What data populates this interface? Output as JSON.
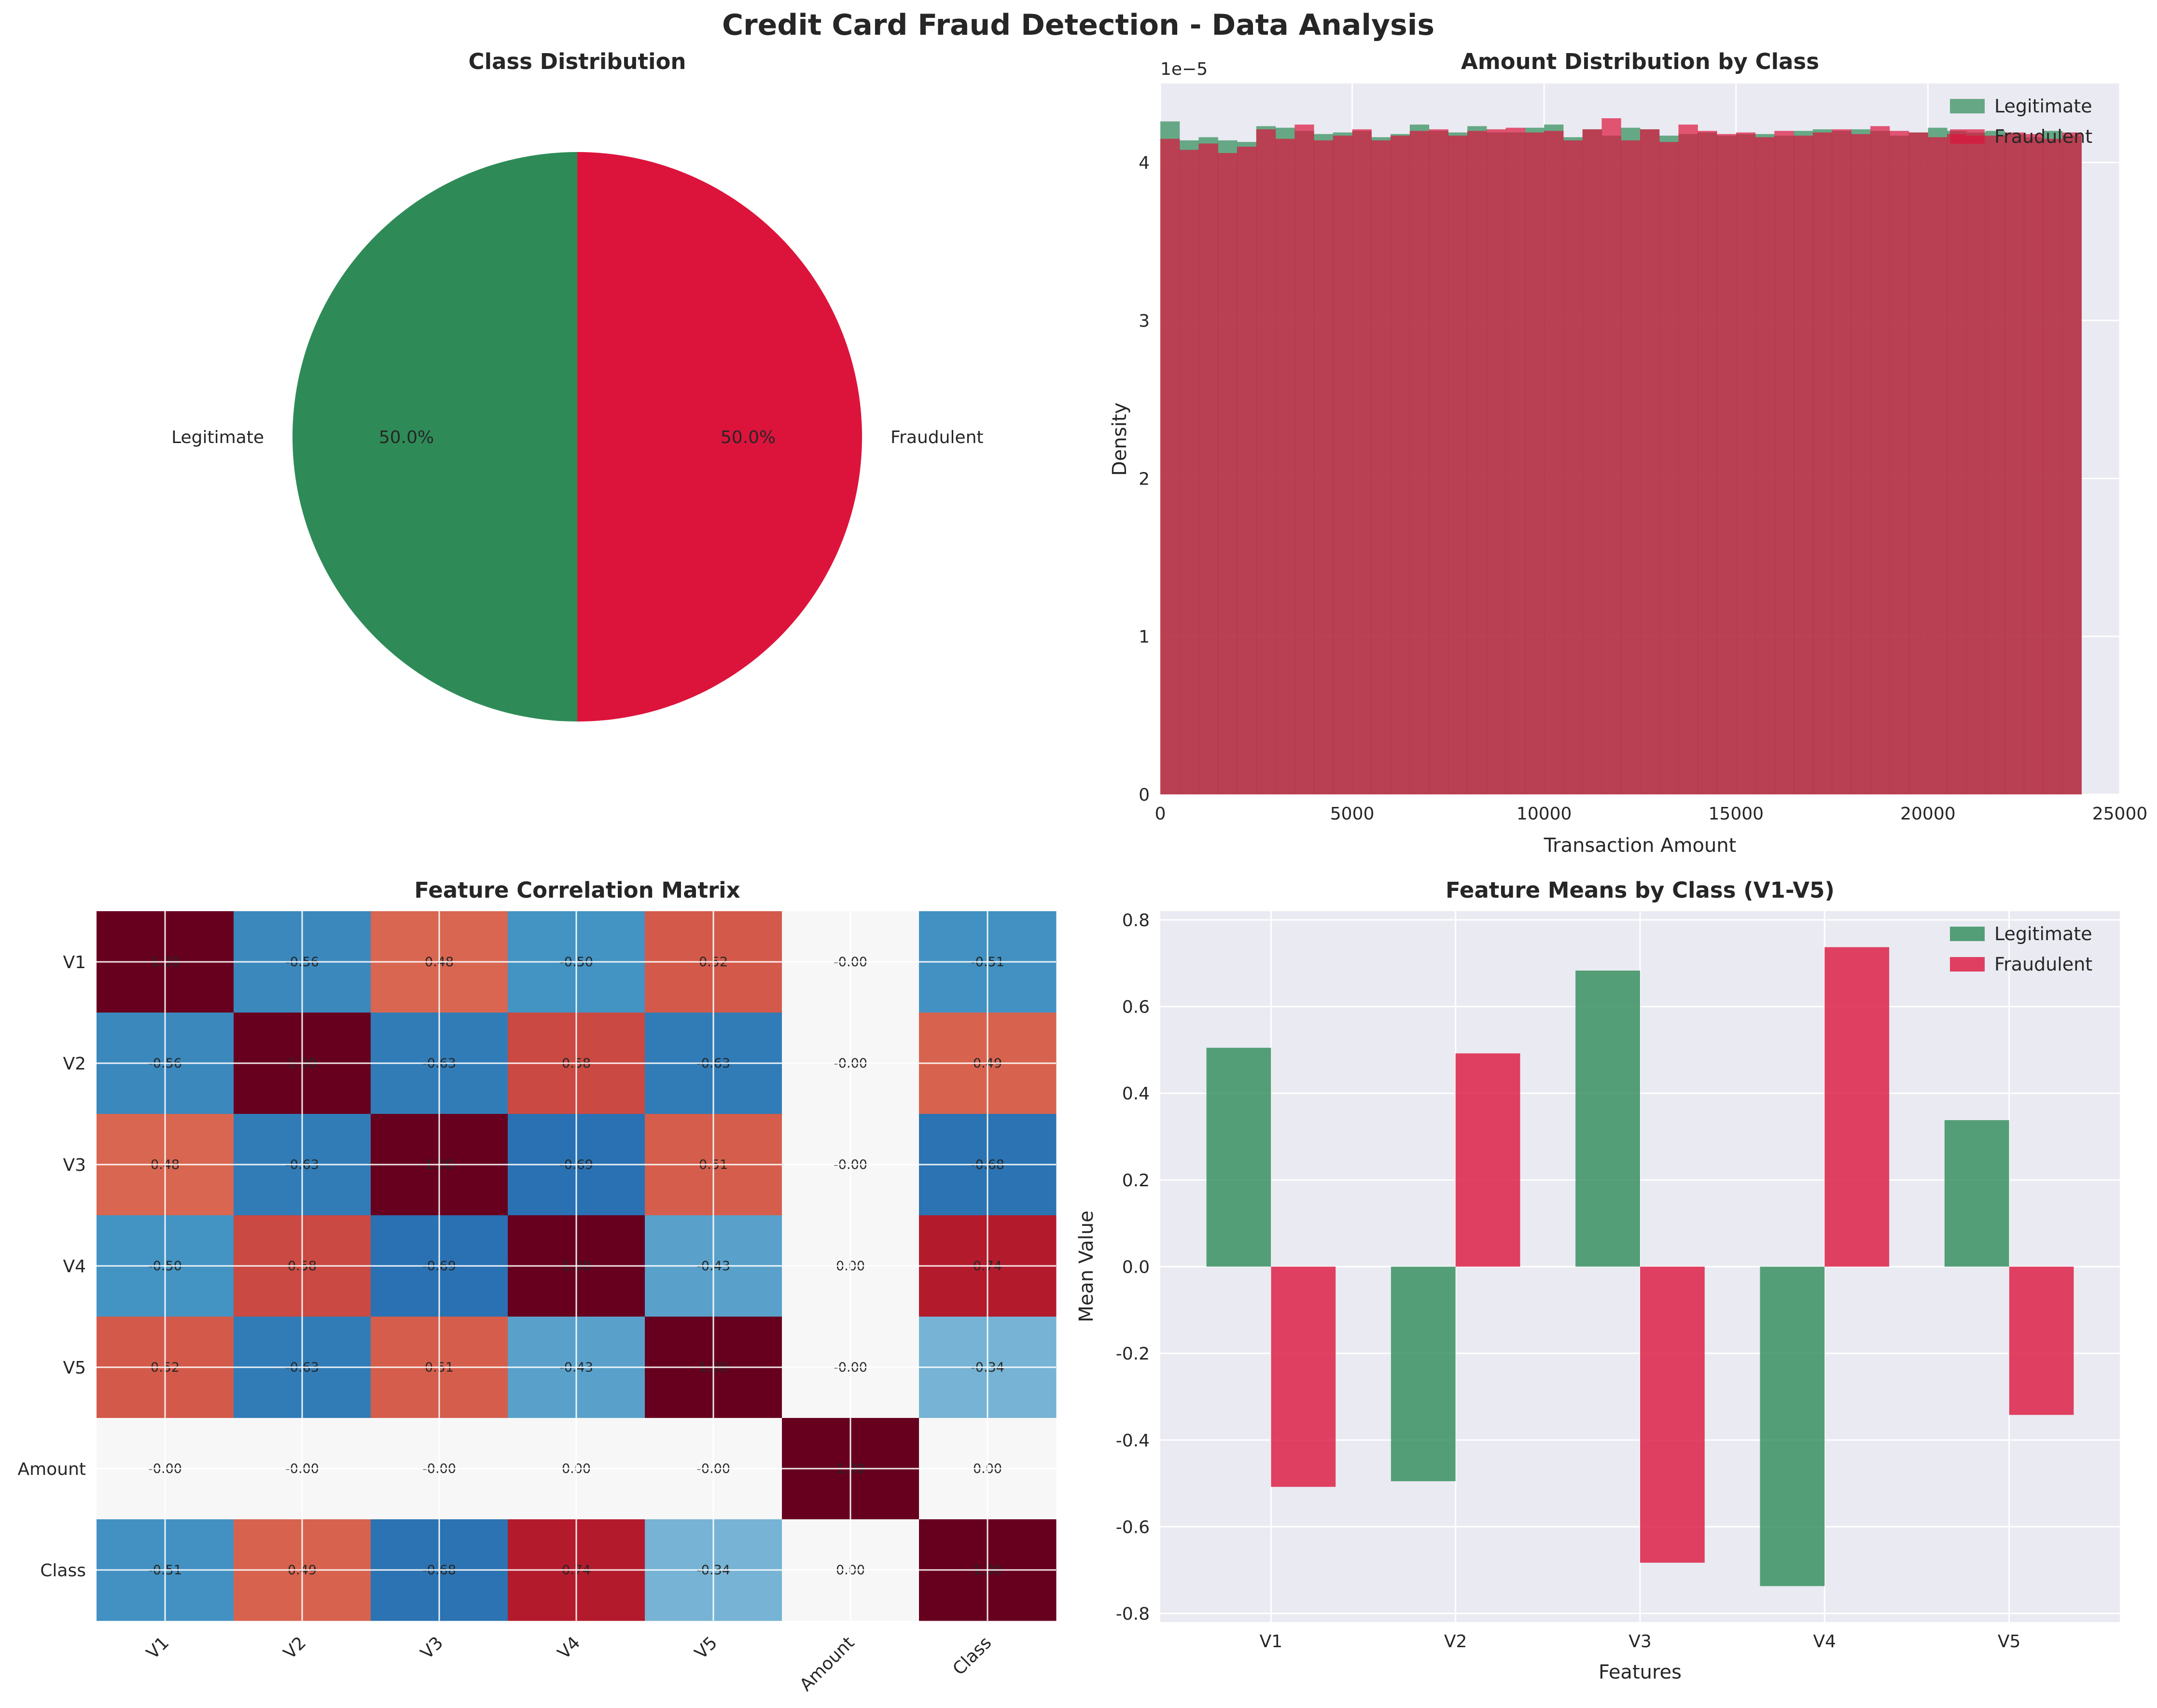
{
  "suptitle": "Credit Card Fraud Detection - Data Analysis",
  "colors": {
    "legit": "#2e8b57",
    "fraud": "#dc143c",
    "overlap": "#b8404f",
    "panel_bg": "#eaeaf2"
  },
  "chart_data": [
    {
      "type": "pie",
      "title": "Class Distribution",
      "labels": [
        "Legitimate",
        "Fraudulent"
      ],
      "values": [
        50.0,
        50.0
      ],
      "pct_labels": [
        "50.0%",
        "50.0%"
      ],
      "colors": [
        "#2e8b57",
        "#dc143c"
      ]
    },
    {
      "type": "histogram",
      "title": "Amount Distribution by Class",
      "xlabel": "Transaction Amount",
      "ylabel": "Density",
      "offset_label": "1e−5",
      "xlim": [
        0,
        25000
      ],
      "ylim": [
        0,
        4.5
      ],
      "xticks": [
        0,
        5000,
        10000,
        15000,
        20000,
        25000
      ],
      "yticks": [
        0,
        1,
        2,
        3,
        4
      ],
      "bin_range": [
        0,
        24000
      ],
      "legend": [
        "Legitimate",
        "Fraudulent"
      ],
      "legend_position": "top-right",
      "series": [
        {
          "name": "Legitimate",
          "values": [
            4.26,
            4.14,
            4.16,
            4.14,
            4.13,
            4.23,
            4.22,
            4.2,
            4.18,
            4.19,
            4.2,
            4.16,
            4.18,
            4.24,
            4.2,
            4.19,
            4.23,
            4.19,
            4.19,
            4.22,
            4.24,
            4.16,
            4.21,
            4.17,
            4.22,
            4.21,
            4.17,
            4.18,
            4.19,
            4.17,
            4.18,
            4.18,
            4.17,
            4.2,
            4.21,
            4.2,
            4.21,
            4.2,
            4.17,
            4.19,
            4.22,
            4.2,
            4.19,
            4.2,
            4.18,
            4.16,
            4.2,
            4.17
          ]
        },
        {
          "name": "Fraudulent",
          "values": [
            4.15,
            4.08,
            4.12,
            4.06,
            4.1,
            4.21,
            4.15,
            4.24,
            4.14,
            4.17,
            4.21,
            4.14,
            4.17,
            4.2,
            4.21,
            4.17,
            4.2,
            4.21,
            4.22,
            4.19,
            4.2,
            4.14,
            4.21,
            4.28,
            4.14,
            4.21,
            4.13,
            4.24,
            4.2,
            4.18,
            4.19,
            4.16,
            4.2,
            4.17,
            4.19,
            4.21,
            4.18,
            4.23,
            4.2,
            4.19,
            4.16,
            4.18,
            4.17,
            4.17,
            4.19,
            4.18,
            4.15,
            4.19
          ]
        }
      ]
    },
    {
      "type": "heatmap",
      "title": "Feature Correlation Matrix",
      "labels": [
        "V1",
        "V2",
        "V3",
        "V4",
        "V5",
        "Amount",
        "Class"
      ],
      "cmap": "RdBu_r",
      "matrix": [
        [
          1.0,
          -0.56,
          0.48,
          -0.5,
          0.52,
          0.0,
          -0.51
        ],
        [
          -0.56,
          1.0,
          -0.63,
          0.58,
          -0.63,
          0.0,
          0.49
        ],
        [
          0.48,
          -0.63,
          1.0,
          -0.69,
          0.51,
          0.0,
          -0.68
        ],
        [
          -0.5,
          0.58,
          -0.69,
          1.0,
          -0.43,
          0.0,
          0.74
        ],
        [
          0.52,
          -0.63,
          0.51,
          -0.43,
          1.0,
          0.0,
          -0.34
        ],
        [
          0.0,
          0.0,
          0.0,
          0.0,
          0.0,
          1.0,
          0.0
        ],
        [
          -0.51,
          0.49,
          -0.68,
          0.74,
          -0.34,
          0.0,
          1.0
        ]
      ],
      "cell_text": [
        [
          "1.00",
          "-0.56",
          "0.48",
          "-0.50",
          "0.52",
          "-0.00",
          "-0.51"
        ],
        [
          "-0.56",
          "1.00",
          "-0.63",
          "0.58",
          "-0.63",
          "-0.00",
          "0.49"
        ],
        [
          "0.48",
          "-0.63",
          "1.00",
          "-0.69",
          "0.51",
          "-0.00",
          "-0.68"
        ],
        [
          "-0.50",
          "0.58",
          "-0.69",
          "1.00",
          "-0.43",
          "0.00",
          "0.74"
        ],
        [
          "0.52",
          "-0.63",
          "0.51",
          "-0.43",
          "1.00",
          "-0.00",
          "-0.34"
        ],
        [
          "-0.00",
          "-0.00",
          "-0.00",
          "0.00",
          "-0.00",
          "1.00",
          "0.00"
        ],
        [
          "-0.51",
          "0.49",
          "-0.68",
          "0.74",
          "-0.34",
          "0.00",
          "1.00"
        ]
      ]
    },
    {
      "type": "bar",
      "title": "Feature Means by Class (V1-V5)",
      "xlabel": "Features",
      "ylabel": "Mean Value",
      "categories": [
        "V1",
        "V2",
        "V3",
        "V4",
        "V5"
      ],
      "ylim": [
        -0.82,
        0.82
      ],
      "yticks": [
        -0.8,
        -0.6,
        -0.4,
        -0.2,
        0.0,
        0.2,
        0.4,
        0.6,
        0.8
      ],
      "legend_position": "top-right",
      "series": [
        {
          "name": "Legitimate",
          "values": [
            0.505,
            -0.495,
            0.683,
            -0.737,
            0.338
          ]
        },
        {
          "name": "Fraudulent",
          "values": [
            -0.508,
            0.492,
            -0.683,
            0.737,
            -0.342
          ]
        }
      ]
    }
  ]
}
